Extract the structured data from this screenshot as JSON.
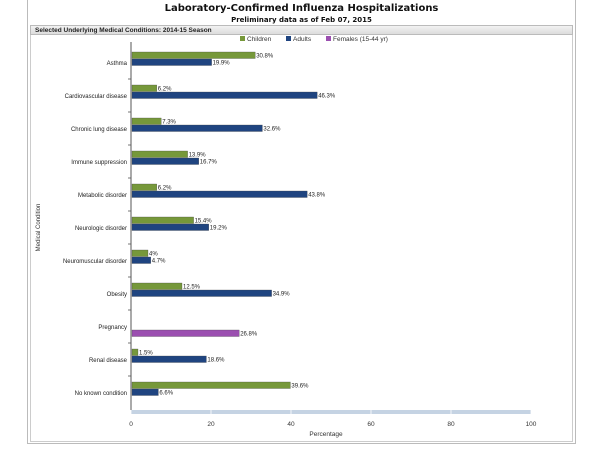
{
  "header": {
    "title": "Laboratory-Confirmed Influenza Hospitalizations",
    "subtitle": "Preliminary data as of Feb 07, 2015",
    "section": "Selected Underlying Medical Conditions: 2014-15 Season"
  },
  "chart_data": {
    "type": "bar",
    "orientation": "horizontal",
    "xlabel": "Percentage",
    "ylabel": "Medical Condition",
    "xlim": [
      0,
      100
    ],
    "xticks": [
      0,
      20,
      40,
      60,
      80,
      100
    ],
    "legend_position": "top",
    "categories": [
      "Asthma",
      "Cardiovascular disease",
      "Chronic lung disease",
      "Immune suppression",
      "Metabolic disorder",
      "Neurologic disorder",
      "Neuromuscular disorder",
      "Obesity",
      "Pregnancy",
      "Renal disease",
      "No known condition"
    ],
    "series": [
      {
        "name": "Children",
        "color": "#76983a",
        "values": [
          30.8,
          6.2,
          7.3,
          13.9,
          6.2,
          15.4,
          4,
          12.5,
          null,
          1.5,
          39.6
        ],
        "labels": [
          "30.8%",
          "6.2%",
          "7.3%",
          "13.9%",
          "6.2%",
          "15.4%",
          "4%",
          "12.5%",
          null,
          "1.5%",
          "39.6%"
        ]
      },
      {
        "name": "Adults",
        "color": "#1f4480",
        "values": [
          19.9,
          46.3,
          32.6,
          16.7,
          43.8,
          19.2,
          4.7,
          34.9,
          null,
          18.6,
          6.6
        ],
        "labels": [
          "19.9%",
          "46.3%",
          "32.6%",
          "16.7%",
          "43.8%",
          "19.2%",
          "4.7%",
          "34.9%",
          null,
          "18.6%",
          "6.6%"
        ]
      },
      {
        "name": "Females (15-44 yr)",
        "color": "#9b4fb0",
        "values": [
          null,
          null,
          null,
          null,
          null,
          null,
          null,
          null,
          26.8,
          null,
          null
        ],
        "labels": [
          null,
          null,
          null,
          null,
          null,
          null,
          null,
          null,
          "26.8%",
          null,
          null
        ]
      }
    ]
  }
}
